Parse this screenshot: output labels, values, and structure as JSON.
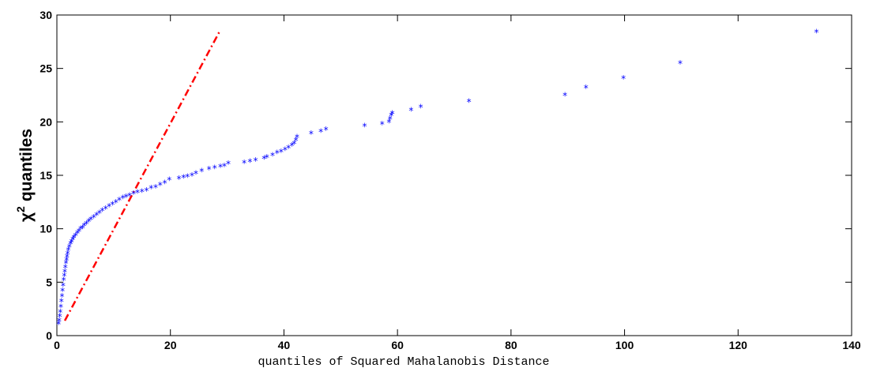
{
  "chart_data": {
    "type": "scatter",
    "title": "",
    "xlabel": "quantiles of Squared Mahalanobis Distance",
    "ylabel": "quantiles",
    "ylabel_symbol": "χ",
    "ylabel_superscript": "2",
    "xlim": [
      0,
      140
    ],
    "ylim": [
      0,
      30
    ],
    "xticks": [
      0,
      20,
      40,
      60,
      80,
      100,
      120,
      140
    ],
    "yticks": [
      0,
      5,
      10,
      15,
      20,
      25,
      30
    ],
    "grid": false,
    "marker": "*",
    "series": [
      {
        "type": "scatter",
        "color": "#0000ff",
        "x": [
          0.3,
          0.4,
          0.5,
          0.6,
          0.7,
          0.8,
          0.9,
          1.0,
          1.1,
          1.2,
          1.3,
          1.4,
          1.5,
          1.6,
          1.7,
          1.8,
          1.9,
          2.0,
          2.2,
          2.4,
          2.6,
          2.8,
          3.0,
          3.3,
          3.6,
          3.9,
          4.2,
          4.5,
          4.8,
          5.2,
          5.6,
          6.0,
          6.5,
          7.0,
          7.5,
          8.0,
          8.6,
          9.2,
          9.8,
          10.4,
          11.0,
          11.6,
          12.2,
          12.8,
          13.5,
          14.2,
          15.0,
          15.8,
          16.6,
          17.4,
          18.2,
          19.0,
          19.8,
          21.5,
          22.3,
          23.0,
          23.8,
          24.5,
          25.5,
          26.8,
          27.8,
          28.8,
          29.5,
          30.2,
          33.0,
          34.0,
          35.0,
          36.5,
          37.0,
          38.0,
          38.8,
          39.5,
          40.2,
          40.8,
          41.4,
          41.8,
          42.1,
          42.3,
          44.8,
          46.5,
          47.4,
          54.2,
          57.3,
          58.5,
          58.7,
          58.9,
          59.1,
          62.4,
          64.1,
          72.6,
          89.5,
          93.2,
          99.8,
          109.8,
          133.8
        ],
        "y": [
          1.1,
          1.4,
          1.8,
          2.2,
          2.7,
          3.2,
          3.7,
          4.2,
          4.7,
          5.2,
          5.6,
          6.0,
          6.4,
          6.8,
          7.1,
          7.4,
          7.7,
          8.0,
          8.3,
          8.6,
          8.8,
          9.0,
          9.2,
          9.4,
          9.6,
          9.8,
          10.0,
          10.1,
          10.3,
          10.5,
          10.7,
          10.9,
          11.1,
          11.3,
          11.5,
          11.7,
          11.9,
          12.1,
          12.3,
          12.5,
          12.7,
          12.9,
          13.0,
          13.1,
          13.3,
          13.4,
          13.5,
          13.6,
          13.8,
          13.9,
          14.1,
          14.3,
          14.6,
          14.7,
          14.8,
          14.9,
          15.0,
          15.2,
          15.4,
          15.6,
          15.7,
          15.8,
          15.9,
          16.1,
          16.2,
          16.3,
          16.4,
          16.6,
          16.7,
          16.9,
          17.1,
          17.2,
          17.4,
          17.6,
          17.8,
          18.0,
          18.3,
          18.6,
          18.9,
          19.1,
          19.3,
          19.6,
          19.8,
          20.0,
          20.3,
          20.6,
          20.8,
          21.1,
          21.4,
          21.9,
          22.5,
          23.2,
          24.1,
          25.5,
          28.4
        ]
      },
      {
        "type": "line",
        "style": "dash-dot",
        "color": "#ff0000",
        "x": [
          1.4,
          28.6
        ],
        "y": [
          1.4,
          28.4
        ]
      }
    ]
  }
}
